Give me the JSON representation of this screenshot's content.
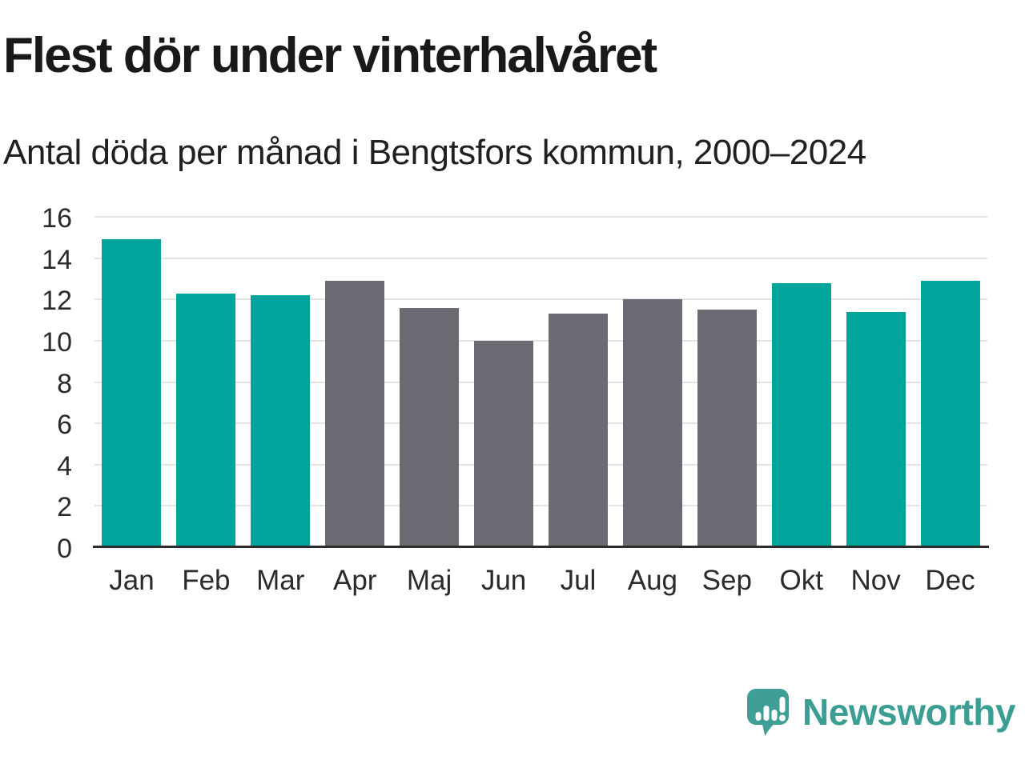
{
  "header": {
    "title": "Flest dör under vinterhalvåret",
    "subtitle": "Antal döda per månad i Bengtsfors kommun, 2000–2024"
  },
  "chart_data": {
    "type": "bar",
    "title": "Flest dör under vinterhalvåret",
    "subtitle": "Antal döda per månad i Bengtsfors kommun, 2000–2024",
    "categories": [
      "Jan",
      "Feb",
      "Mar",
      "Apr",
      "Maj",
      "Jun",
      "Jul",
      "Aug",
      "Sep",
      "Okt",
      "Nov",
      "Dec"
    ],
    "values": [
      14.9,
      12.3,
      12.2,
      12.9,
      11.6,
      10.0,
      11.3,
      12.0,
      11.5,
      12.8,
      11.4,
      12.9
    ],
    "bar_color_keys": [
      "winter",
      "winter",
      "winter",
      "summer",
      "summer",
      "summer",
      "summer",
      "summer",
      "summer",
      "winter",
      "winter",
      "winter"
    ],
    "colors": {
      "winter": "#00a49b",
      "summer": "#6b6a72",
      "gridline": "#e4e4e6",
      "axis": "#2c2c2c",
      "text": "#2b2b2b"
    },
    "xlabel": "",
    "ylabel": "",
    "ylim": [
      0,
      16
    ],
    "yticks": [
      0,
      2,
      4,
      6,
      8,
      10,
      12,
      14,
      16
    ],
    "grid": true,
    "legend": "none"
  },
  "footer": {
    "brand": "Newsworthy",
    "brand_color": "#3a9e93",
    "logo_icon": "newsworthy-speech-bubble-chart-icon"
  }
}
